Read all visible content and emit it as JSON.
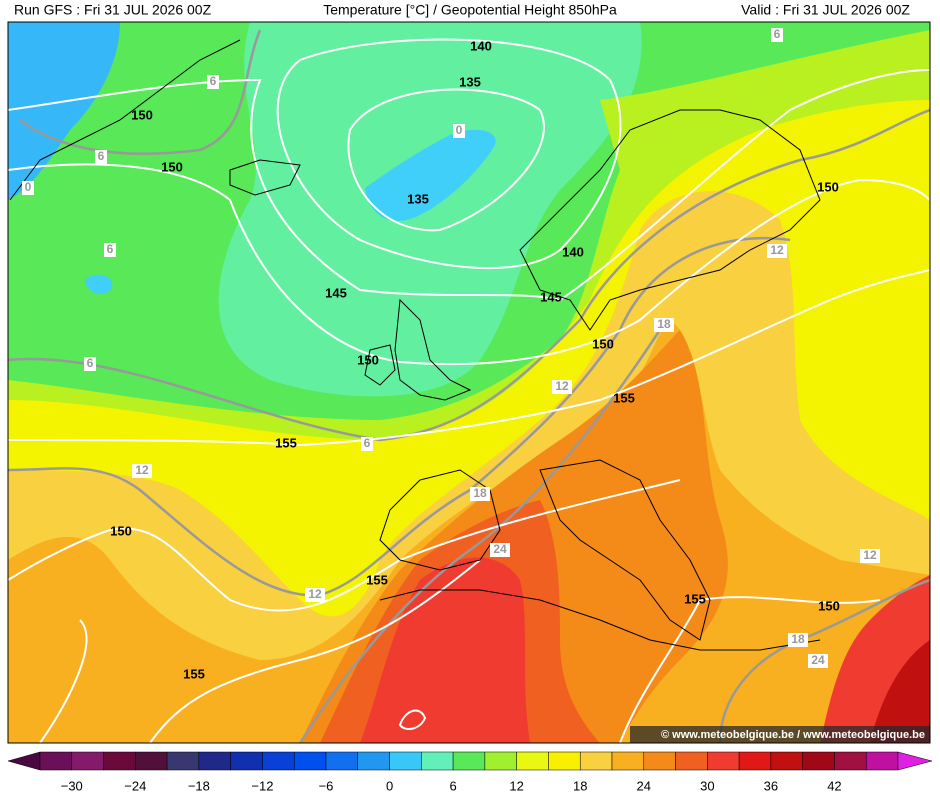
{
  "header": {
    "run": "Run GFS : Fri 31 JUL 2026 00Z",
    "title": "Temperature [°C] / Geopotential Height 850hPa",
    "valid": "Valid : Fri 31 JUL 2026 00Z"
  },
  "height_labels": [
    "140",
    "135",
    "150",
    "150",
    "135",
    "140",
    "150",
    "145",
    "145",
    "150",
    "150",
    "155",
    "155",
    "150",
    "155",
    "155",
    "150",
    "155"
  ],
  "temperature_labels": [
    "6",
    "6",
    "0",
    "6",
    "0",
    "6",
    "12",
    "6",
    "18",
    "12",
    "6",
    "12",
    "18",
    "24",
    "12",
    "12",
    "18",
    "24"
  ],
  "colorbar": {
    "labels": [
      "−30",
      "−24",
      "−18",
      "−12",
      "−6",
      "0",
      "6",
      "12",
      "18",
      "24",
      "30",
      "36",
      "42"
    ],
    "colors": [
      "#4a0840",
      "#6a1058",
      "#861a6a",
      "#6a0a3a",
      "#50103a",
      "#383870",
      "#20288a",
      "#1030b0",
      "#0840d8",
      "#0050f0",
      "#1070f0",
      "#2098f0",
      "#38c8f8",
      "#60f0b8",
      "#58e858",
      "#a0f030",
      "#e8f810",
      "#f8f000",
      "#f8d040",
      "#f8b020",
      "#f48a18",
      "#f06020",
      "#f03c30",
      "#e01818",
      "#c01010",
      "#a00818",
      "#a01040",
      "#c010a0",
      "#e020e0"
    ]
  },
  "credit": "© www.meteobelgique.be / www.meteobelgique.be"
}
